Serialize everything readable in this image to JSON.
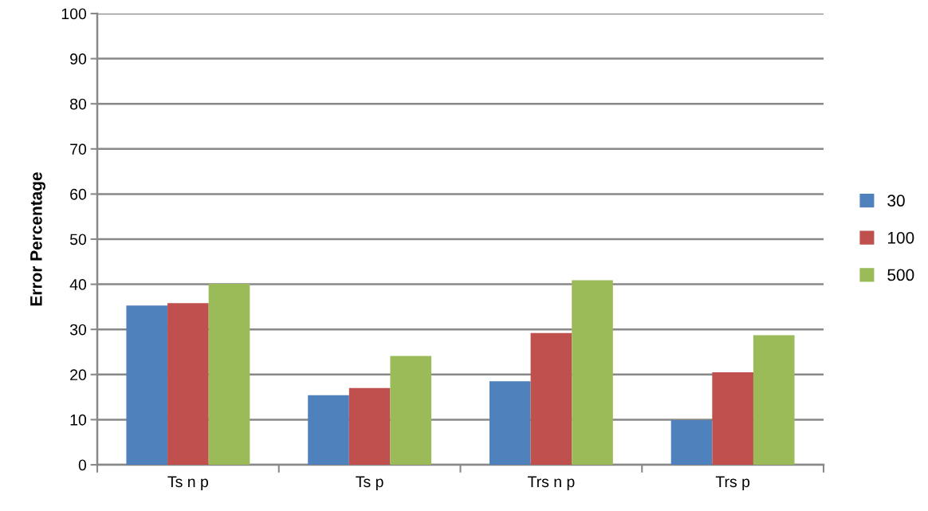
{
  "chart_data": {
    "type": "bar",
    "ylabel": "Error Percentage",
    "categories": [
      "Ts n p",
      "Ts p",
      "Trs n p",
      "Trs p"
    ],
    "series": [
      {
        "name": "30",
        "color": "#4f81bd",
        "values": [
          35.3,
          15.4,
          18.5,
          9.9
        ]
      },
      {
        "name": "100",
        "color": "#c0504d",
        "values": [
          35.8,
          17.0,
          29.2,
          20.5
        ]
      },
      {
        "name": "500",
        "color": "#9bbb59",
        "values": [
          40.1,
          24.1,
          40.9,
          28.7
        ]
      }
    ],
    "ylim": [
      0,
      100
    ],
    "yticks": [
      0,
      10,
      20,
      30,
      40,
      50,
      60,
      70,
      80,
      90,
      100
    ],
    "grid": "y",
    "legend": "right"
  }
}
